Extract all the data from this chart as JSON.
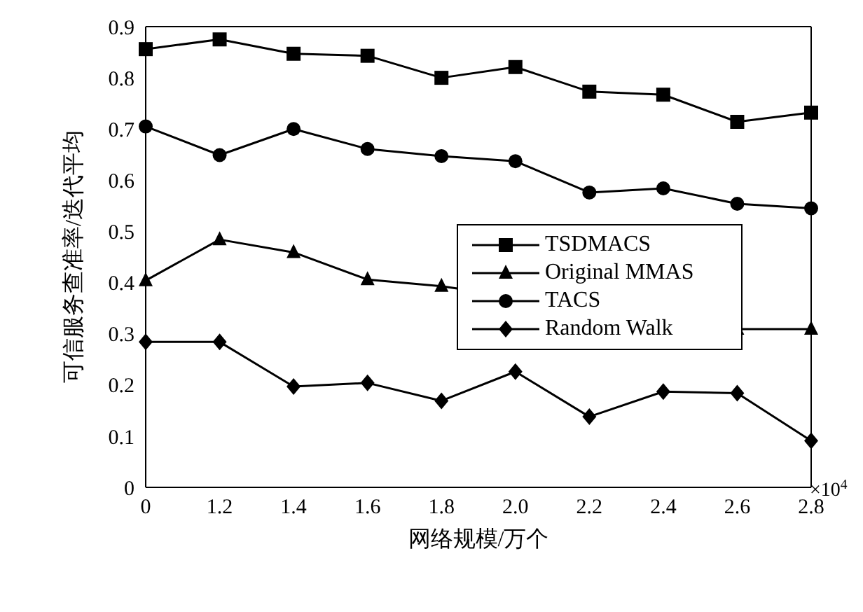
{
  "chart_data": {
    "type": "line",
    "xlabel": "网络规模/万个",
    "ylabel": "可信服务查准率/迭代平均",
    "categories": [
      "0",
      "1.2",
      "1.4",
      "1.6",
      "1.8",
      "2.0",
      "2.2",
      "2.4",
      "2.6",
      "2.8"
    ],
    "ylim": [
      0,
      0.9
    ],
    "yticks": [
      0,
      0.1,
      0.2,
      0.3,
      0.4,
      0.5,
      0.6,
      0.7,
      0.8,
      0.9
    ],
    "grid": false,
    "legend": "right",
    "line_style": "solid",
    "annotations": [
      "×10$^{4}$"
    ],
    "series": [
      {
        "name": "TSDMACS",
        "color": "#000000",
        "marker": "square",
        "values": [
          0.856,
          0.875,
          0.847,
          0.843,
          0.8,
          0.821,
          0.773,
          0.767,
          0.714,
          0.732
        ]
      },
      {
        "name": "Original MMAS",
        "color": "#000000",
        "marker": "triangle",
        "values": [
          0.404,
          0.484,
          0.459,
          0.406,
          0.393,
          null,
          null,
          null,
          0.309,
          0.309
        ]
      },
      {
        "name": "TACS",
        "color": "#000000",
        "marker": "circle",
        "values": [
          0.705,
          0.649,
          0.7,
          0.661,
          0.647,
          0.637,
          0.576,
          0.584,
          0.554,
          0.545
        ]
      },
      {
        "name": "Random Walk",
        "color": "#000000",
        "marker": "diamond",
        "values": [
          0.284,
          0.284,
          0.197,
          0.204,
          0.169,
          0.226,
          0.138,
          0.187,
          0.184,
          0.091
        ]
      }
    ]
  }
}
